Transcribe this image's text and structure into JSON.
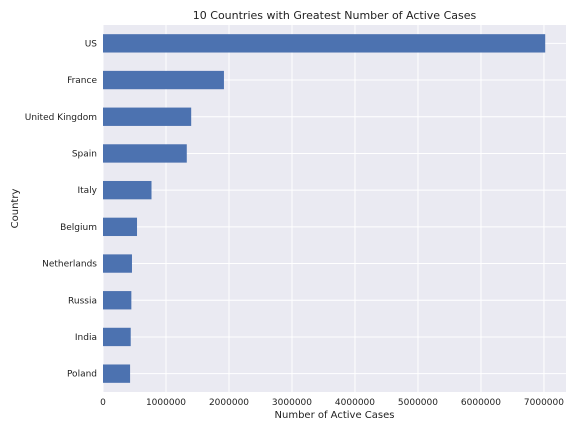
{
  "chart_data": {
    "type": "bar",
    "orientation": "horizontal",
    "title": "10 Countries with Greatest Number of Active Cases",
    "xlabel": "Number of Active Cases",
    "ylabel": "Country",
    "xlim": [
      0,
      7350000
    ],
    "xticks": [
      0,
      1000000,
      2000000,
      3000000,
      4000000,
      5000000,
      6000000,
      7000000
    ],
    "categories": [
      "US",
      "France",
      "United Kingdom",
      "Spain",
      "Italy",
      "Belgium",
      "Netherlands",
      "Russia",
      "India",
      "Poland"
    ],
    "values": [
      7020000,
      1920000,
      1400000,
      1330000,
      770000,
      540000,
      460000,
      450000,
      440000,
      430000
    ],
    "bar_color": "#4c72b0",
    "background_color": "#eaeaf2",
    "grid": true
  }
}
